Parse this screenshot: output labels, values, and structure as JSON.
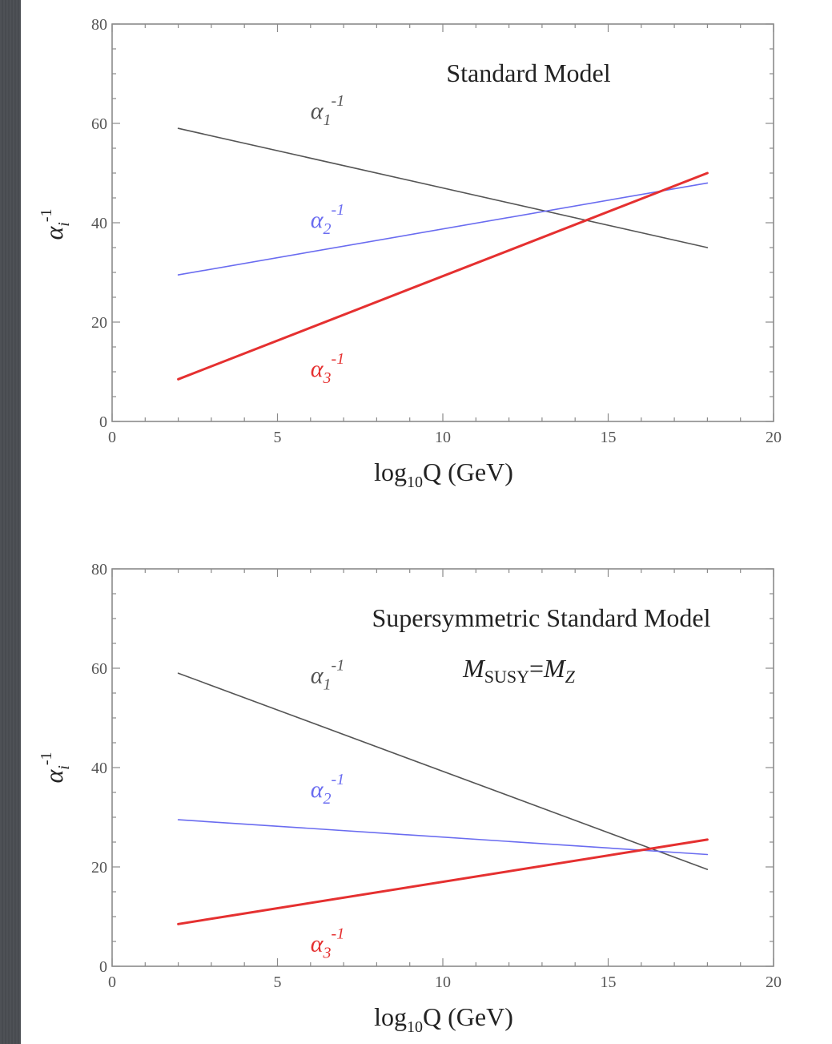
{
  "chart_data": [
    {
      "type": "line",
      "title": "Standard Model",
      "subtitle": "",
      "xlabel": "log₁₀Q (GeV)",
      "ylabel": "αᵢ⁻¹",
      "xlim": [
        0,
        20
      ],
      "ylim": [
        0,
        80
      ],
      "xticks": [
        0,
        5,
        10,
        15,
        20
      ],
      "yticks": [
        0,
        20,
        40,
        60,
        80
      ],
      "grid": false,
      "series": [
        {
          "name": "α₁⁻¹",
          "color": "#555555",
          "x": [
            2,
            18
          ],
          "y": [
            59,
            35
          ],
          "label_at": [
            6,
            61
          ],
          "width": 1.6
        },
        {
          "name": "α₂⁻¹",
          "color": "#6a6cf0",
          "x": [
            2,
            18
          ],
          "y": [
            29.5,
            48
          ],
          "label_at": [
            6,
            39
          ],
          "width": 1.6
        },
        {
          "name": "α₃⁻¹",
          "color": "#e53030",
          "x": [
            2,
            18
          ],
          "y": [
            8.5,
            50
          ],
          "label_at": [
            6,
            9
          ],
          "width": 3
        }
      ]
    },
    {
      "type": "line",
      "title": "Supersymmetric Standard Model",
      "subtitle": "M_SUSY=M_Z",
      "xlabel": "log₁₀Q (GeV)",
      "ylabel": "αᵢ⁻¹",
      "xlim": [
        0,
        20
      ],
      "ylim": [
        0,
        80
      ],
      "xticks": [
        0,
        5,
        10,
        15,
        20
      ],
      "yticks": [
        0,
        20,
        40,
        60,
        80
      ],
      "grid": false,
      "series": [
        {
          "name": "α₁⁻¹",
          "color": "#555555",
          "x": [
            2,
            18
          ],
          "y": [
            59,
            19.5
          ],
          "label_at": [
            6,
            57
          ],
          "width": 1.6
        },
        {
          "name": "α₂⁻¹",
          "color": "#6a6cf0",
          "x": [
            2,
            18
          ],
          "y": [
            29.5,
            22.5
          ],
          "label_at": [
            6,
            34
          ],
          "width": 1.6
        },
        {
          "name": "α₃⁻¹",
          "color": "#e53030",
          "x": [
            2,
            18
          ],
          "y": [
            8.5,
            25.5
          ],
          "label_at": [
            6,
            3
          ],
          "width": 3
        }
      ]
    }
  ]
}
